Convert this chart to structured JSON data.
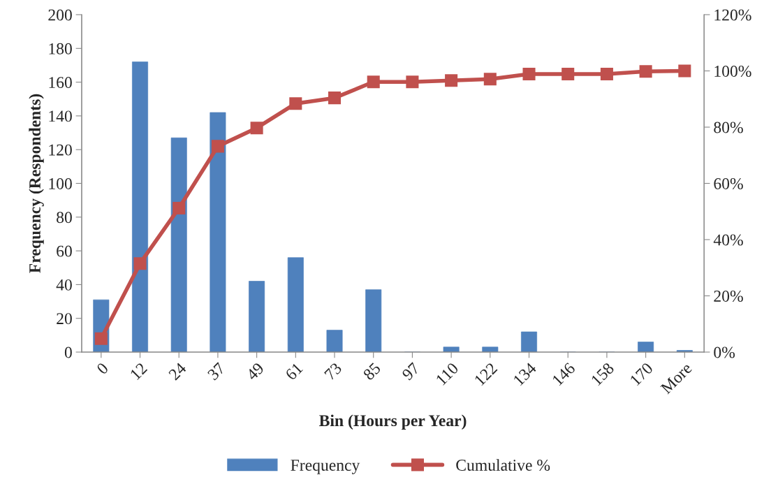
{
  "chart_data": {
    "type": "bar",
    "xlabel": "Bin (Hours per Year)",
    "ylabel": "Frequency (Respondents)",
    "categories": [
      "0",
      "12",
      "24",
      "37",
      "49",
      "61",
      "73",
      "85",
      "97",
      "110",
      "122",
      "134",
      "146",
      "158",
      "170",
      "More"
    ],
    "series": [
      {
        "name": "Frequency",
        "color": "#4f81bd",
        "values": [
          31,
          172,
          127,
          142,
          42,
          56,
          13,
          37,
          0,
          3,
          3,
          12,
          0,
          0,
          6,
          1
        ]
      },
      {
        "name": "Cumulative %",
        "type": "line",
        "axis": "y2",
        "color": "#c0504d",
        "marker": "square",
        "line_style": "solid",
        "values": [
          4.8,
          31.5,
          51.2,
          73.2,
          79.7,
          88.4,
          90.4,
          96.1,
          96.1,
          96.6,
          97.1,
          98.9,
          98.9,
          98.9,
          99.8,
          100
        ]
      }
    ],
    "ylim": [
      0,
      200
    ],
    "yticks": [
      0,
      20,
      40,
      60,
      80,
      100,
      120,
      140,
      160,
      180,
      200
    ],
    "y2lim": [
      0,
      120
    ],
    "y2ticks": [
      {
        "value": 0,
        "label": "0%"
      },
      {
        "value": 20,
        "label": "20%"
      },
      {
        "value": 40,
        "label": "40%"
      },
      {
        "value": 60,
        "label": "60%"
      },
      {
        "value": 80,
        "label": "80%"
      },
      {
        "value": 100,
        "label": "100%"
      },
      {
        "value": 120,
        "label": "120%"
      }
    ],
    "grid": false,
    "legend": "bottom"
  }
}
